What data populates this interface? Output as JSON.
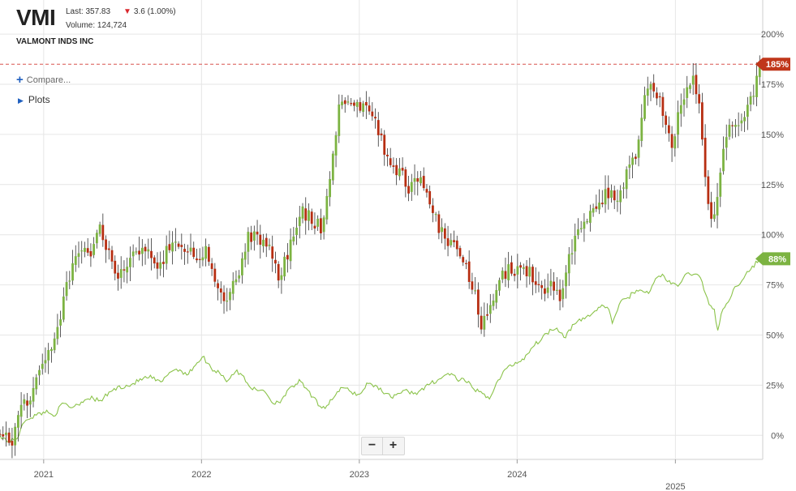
{
  "header": {
    "ticker": "VMI",
    "last": "Last: 357.83",
    "change": "3.6 (1.00%)",
    "volume": "Volume: 124,724",
    "company": "VALMONT INDS INC"
  },
  "controls": {
    "compare_label": "Compare...",
    "plots_label": "Plots",
    "zoom_out": "−",
    "zoom_in": "+"
  },
  "colors": {
    "up": "#7cb342",
    "down": "#b72e12",
    "benchmark": "#8bc34a",
    "badge_main": "#c0361a",
    "badge_bench": "#7cb342",
    "ref_line": "#d9534f",
    "grid": "#e6e6e6",
    "tick_text": "#555555"
  },
  "chart_data": {
    "type": "line",
    "title": "",
    "xlabel": "",
    "ylabel": "",
    "x_ticks": [
      "2021",
      "2022",
      "2023",
      "2024",
      "2025"
    ],
    "y_ticks": [
      "0%",
      "25%",
      "50%",
      "75%",
      "100%",
      "125%",
      "150%",
      "175%",
      "200%"
    ],
    "ylim": [
      -12,
      217
    ],
    "grid": true,
    "xlim": [
      "2020-09-22",
      "2025-07-22"
    ],
    "reference_line": 185,
    "series": [
      {
        "name": "",
        "style": "candlestick",
        "end_label": "185%",
        "points": [
          [
            "2020-09-22",
            0
          ],
          [
            "2020-10-20",
            -3
          ],
          [
            "2020-11-10",
            12
          ],
          [
            "2020-12-01",
            20
          ],
          [
            "2020-12-20",
            32
          ],
          [
            "2021-01-10",
            40
          ],
          [
            "2021-01-22",
            42
          ],
          [
            "2021-02-05",
            55
          ],
          [
            "2021-02-20",
            72
          ],
          [
            "2021-03-10",
            85
          ],
          [
            "2021-04-01",
            95
          ],
          [
            "2021-04-20",
            92
          ],
          [
            "2021-05-06",
            105
          ],
          [
            "2021-05-25",
            95
          ],
          [
            "2021-06-15",
            80
          ],
          [
            "2021-07-01",
            83
          ],
          [
            "2021-08-01",
            90
          ],
          [
            "2021-09-01",
            92
          ],
          [
            "2021-09-25",
            85
          ],
          [
            "2021-11-01",
            98
          ],
          [
            "2021-11-20",
            95
          ],
          [
            "2021-12-15",
            90
          ],
          [
            "2022-01-10",
            92
          ],
          [
            "2022-02-01",
            77
          ],
          [
            "2022-02-20",
            68
          ],
          [
            "2022-03-10",
            72
          ],
          [
            "2022-04-01",
            85
          ],
          [
            "2022-04-20",
            100
          ],
          [
            "2022-05-10",
            98
          ],
          [
            "2022-06-10",
            92
          ],
          [
            "2022-07-01",
            78
          ],
          [
            "2022-07-25",
            95
          ],
          [
            "2022-08-20",
            112
          ],
          [
            "2022-09-10",
            108
          ],
          [
            "2022-10-05",
            103
          ],
          [
            "2022-10-25",
            130
          ],
          [
            "2022-11-15",
            162
          ],
          [
            "2022-12-05",
            170
          ],
          [
            "2022-12-25",
            165
          ],
          [
            "2023-01-20",
            164
          ],
          [
            "2023-02-10",
            155
          ],
          [
            "2023-03-05",
            140
          ],
          [
            "2023-04-01",
            132
          ],
          [
            "2023-04-25",
            124
          ],
          [
            "2023-05-20",
            130
          ],
          [
            "2023-06-10",
            120
          ],
          [
            "2023-07-01",
            105
          ],
          [
            "2023-07-25",
            95
          ],
          [
            "2023-08-20",
            92
          ],
          [
            "2023-09-20",
            75
          ],
          [
            "2023-10-10",
            55
          ],
          [
            "2023-10-30",
            65
          ],
          [
            "2023-11-20",
            78
          ],
          [
            "2023-12-15",
            83
          ],
          [
            "2024-01-10",
            80
          ],
          [
            "2024-02-01",
            82
          ],
          [
            "2024-02-20",
            72
          ],
          [
            "2024-03-20",
            76
          ],
          [
            "2024-04-10",
            68
          ],
          [
            "2024-04-25",
            85
          ],
          [
            "2024-05-15",
            100
          ],
          [
            "2024-06-05",
            108
          ],
          [
            "2024-07-01",
            112
          ],
          [
            "2024-07-25",
            122
          ],
          [
            "2024-08-20",
            118
          ],
          [
            "2024-09-10",
            130
          ],
          [
            "2024-10-01",
            140
          ],
          [
            "2024-10-20",
            168
          ],
          [
            "2024-11-05",
            176
          ],
          [
            "2024-11-20",
            170
          ],
          [
            "2024-12-10",
            155
          ],
          [
            "2024-12-25",
            145
          ],
          [
            "2025-01-10",
            165
          ],
          [
            "2025-01-25",
            170
          ],
          [
            "2025-02-10",
            178
          ],
          [
            "2025-02-25",
            165
          ],
          [
            "2025-03-10",
            130
          ],
          [
            "2025-03-25",
            108
          ],
          [
            "2025-04-10",
            120
          ],
          [
            "2025-04-25",
            145
          ],
          [
            "2025-05-10",
            155
          ],
          [
            "2025-05-30",
            158
          ],
          [
            "2025-06-20",
            165
          ],
          [
            "2025-07-05",
            175
          ],
          [
            "2025-07-15",
            185
          ]
        ]
      },
      {
        "name": "",
        "style": "line",
        "end_label": "88%",
        "points": [
          [
            "2020-09-22",
            0
          ],
          [
            "2020-10-10",
            -3
          ],
          [
            "2020-10-30",
            -2
          ],
          [
            "2020-11-20",
            8
          ],
          [
            "2020-12-15",
            10
          ],
          [
            "2021-01-05",
            12
          ],
          [
            "2021-01-25",
            10
          ],
          [
            "2021-02-15",
            16
          ],
          [
            "2021-03-05",
            14
          ],
          [
            "2021-03-25",
            16
          ],
          [
            "2021-04-15",
            19
          ],
          [
            "2021-05-12",
            17
          ],
          [
            "2021-06-05",
            22
          ],
          [
            "2021-06-25",
            24
          ],
          [
            "2021-07-20",
            25
          ],
          [
            "2021-08-15",
            28
          ],
          [
            "2021-09-05",
            29
          ],
          [
            "2021-09-30",
            26
          ],
          [
            "2021-10-20",
            32
          ],
          [
            "2021-11-10",
            33
          ],
          [
            "2021-11-30",
            30
          ],
          [
            "2021-12-20",
            36
          ],
          [
            "2022-01-05",
            39
          ],
          [
            "2022-01-25",
            33
          ],
          [
            "2022-02-15",
            31
          ],
          [
            "2022-03-01",
            27
          ],
          [
            "2022-03-20",
            32
          ],
          [
            "2022-04-05",
            30
          ],
          [
            "2022-04-25",
            24
          ],
          [
            "2022-05-10",
            22
          ],
          [
            "2022-05-25",
            23
          ],
          [
            "2022-06-15",
            16
          ],
          [
            "2022-07-01",
            17
          ],
          [
            "2022-07-20",
            22
          ],
          [
            "2022-08-15",
            27
          ],
          [
            "2022-09-01",
            23
          ],
          [
            "2022-09-15",
            19
          ],
          [
            "2022-09-30",
            15
          ],
          [
            "2022-10-15",
            14
          ],
          [
            "2022-11-05",
            20
          ],
          [
            "2022-11-25",
            24
          ],
          [
            "2022-12-10",
            22
          ],
          [
            "2023-01-01",
            20
          ],
          [
            "2023-01-20",
            26
          ],
          [
            "2023-02-05",
            25
          ],
          [
            "2023-02-25",
            22
          ],
          [
            "2023-03-15",
            19
          ],
          [
            "2023-04-01",
            21
          ],
          [
            "2023-04-20",
            22
          ],
          [
            "2023-05-10",
            21
          ],
          [
            "2023-05-30",
            23
          ],
          [
            "2023-06-15",
            26
          ],
          [
            "2023-07-05",
            28
          ],
          [
            "2023-07-28",
            31
          ],
          [
            "2023-08-15",
            28
          ],
          [
            "2023-09-05",
            27
          ],
          [
            "2023-09-25",
            23
          ],
          [
            "2023-10-15",
            20
          ],
          [
            "2023-10-30",
            19
          ],
          [
            "2023-11-15",
            26
          ],
          [
            "2023-12-05",
            33
          ],
          [
            "2023-12-28",
            36
          ],
          [
            "2024-01-15",
            38
          ],
          [
            "2024-02-05",
            44
          ],
          [
            "2024-02-25",
            48
          ],
          [
            "2024-03-15",
            52
          ],
          [
            "2024-04-01",
            54
          ],
          [
            "2024-04-20",
            49
          ],
          [
            "2024-05-10",
            55
          ],
          [
            "2024-06-01",
            58
          ],
          [
            "2024-06-25",
            61
          ],
          [
            "2024-07-15",
            65
          ],
          [
            "2024-07-30",
            63
          ],
          [
            "2024-08-08",
            56
          ],
          [
            "2024-08-25",
            66
          ],
          [
            "2024-09-10",
            68
          ],
          [
            "2024-09-25",
            71
          ],
          [
            "2024-10-15",
            73
          ],
          [
            "2024-11-01",
            70
          ],
          [
            "2024-11-15",
            78
          ],
          [
            "2024-12-01",
            80
          ],
          [
            "2024-12-20",
            76
          ],
          [
            "2025-01-05",
            74
          ],
          [
            "2025-01-25",
            80
          ],
          [
            "2025-02-15",
            81
          ],
          [
            "2025-03-01",
            78
          ],
          [
            "2025-03-15",
            68
          ],
          [
            "2025-04-01",
            62
          ],
          [
            "2025-04-08",
            52
          ],
          [
            "2025-04-20",
            62
          ],
          [
            "2025-05-05",
            68
          ],
          [
            "2025-05-20",
            74
          ],
          [
            "2025-06-05",
            78
          ],
          [
            "2025-06-25",
            83
          ],
          [
            "2025-07-15",
            88
          ]
        ]
      }
    ]
  }
}
